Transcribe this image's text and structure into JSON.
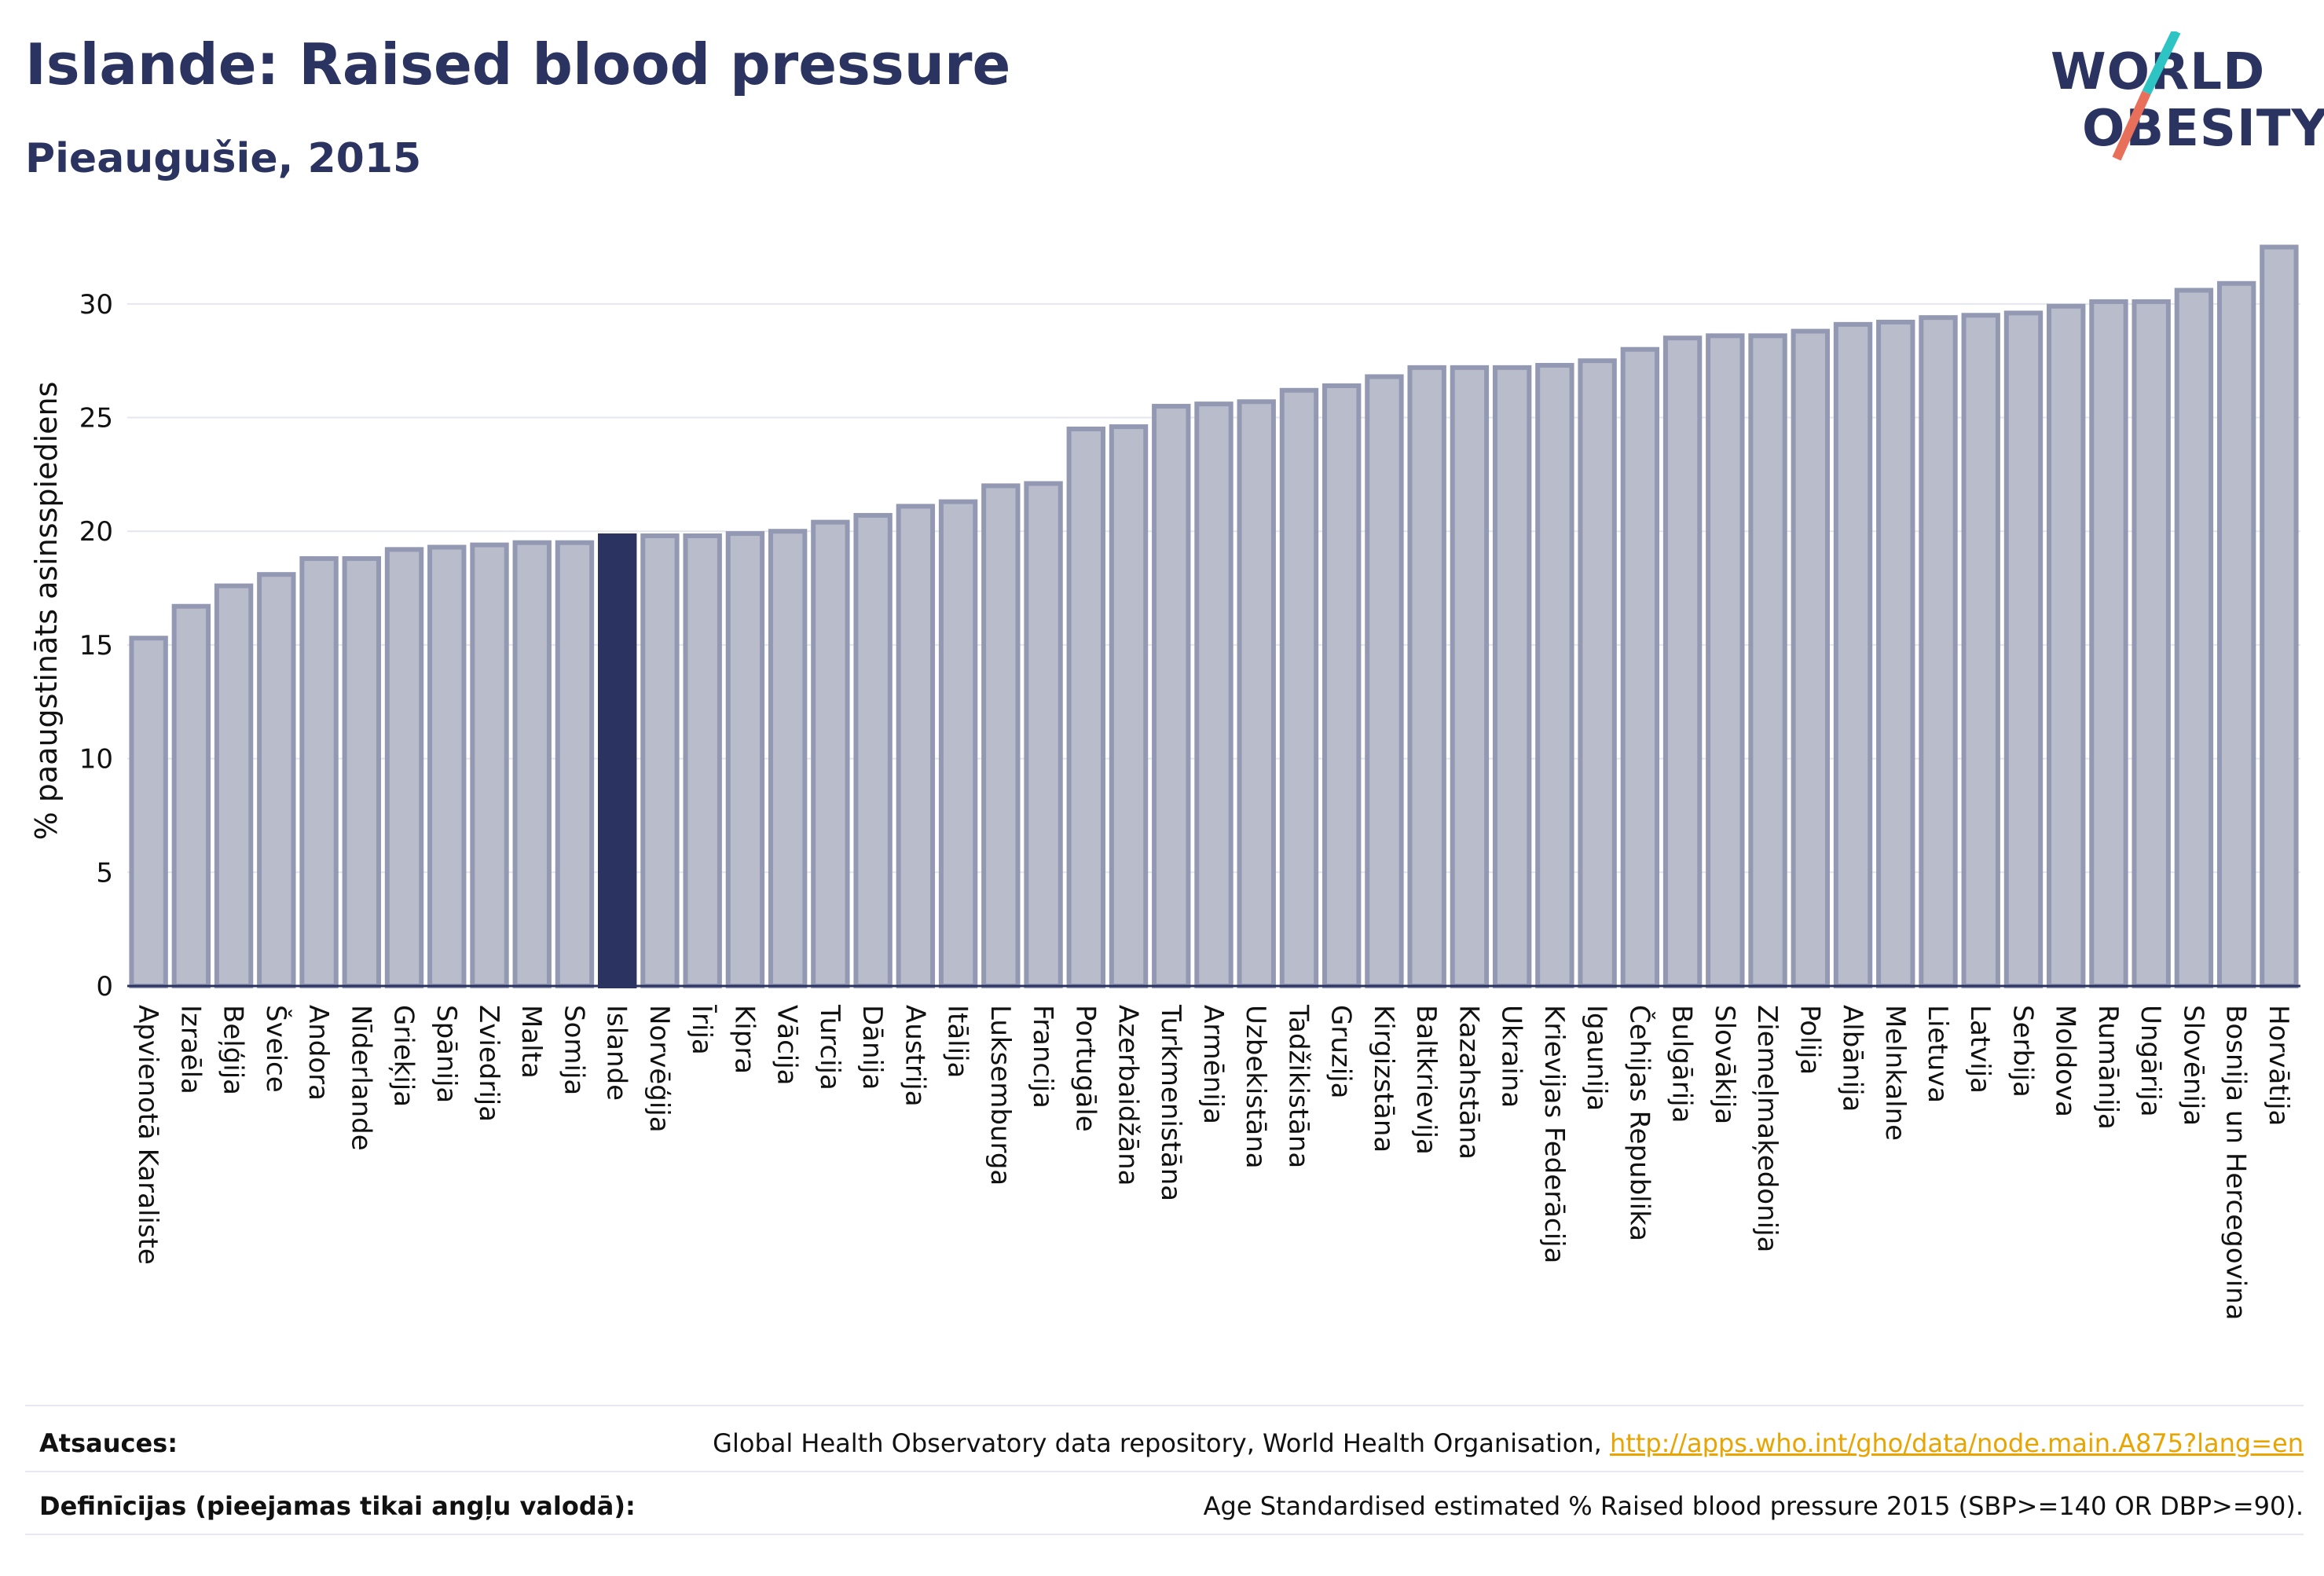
{
  "header": {
    "title": "Islande: Raised blood pressure",
    "subtitle": "Pieaugušie, 2015"
  },
  "logo": {
    "line1": "WORLD",
    "line2": "OBESITY",
    "colors": {
      "text": "#2b3460",
      "slash_teal": "#2ec4c4",
      "slash_red": "#e8705a"
    }
  },
  "chart_data": {
    "type": "bar",
    "ylabel": "% paaugstināts asinsspiediens",
    "ylim": [
      0,
      33
    ],
    "yticks": [
      0,
      5,
      10,
      15,
      20,
      25,
      30
    ],
    "grid": true,
    "highlight": "Islande",
    "colors": {
      "bar": "#b9bccb",
      "bar_border": "#9499b3",
      "highlight": "#2b3460"
    },
    "categories": [
      "Apvienotā Karaliste",
      "Izraēla",
      "Beļģija",
      "Šveice",
      "Andora",
      "Nīderlande",
      "Grieķija",
      "Spānija",
      "Zviedrija",
      "Malta",
      "Somija",
      "Islande",
      "Norvēģija",
      "Īrija",
      "Kipra",
      "Vācija",
      "Turcija",
      "Dānija",
      "Austrija",
      "Itālija",
      "Luksemburga",
      "Francija",
      "Portugāle",
      "Azerbaidžāna",
      "Turkmenistāna",
      "Armēnija",
      "Uzbekistāna",
      "Tadžikistāna",
      "Gruzija",
      "Kirgizstāna",
      "Baltkrievija",
      "Kazahstāna",
      "Ukraina",
      "Krievijas Federācija",
      "Igaunija",
      "Čehijas Republika",
      "Bulgārija",
      "Slovākija",
      "Ziemeļmaķedonija",
      "Polija",
      "Albānija",
      "Melnkalne",
      "Lietuva",
      "Latvija",
      "Serbija",
      "Moldova",
      "Rumānija",
      "Ungārija",
      "Slovēnija",
      "Bosnija un Hercegovina",
      "Horvātija"
    ],
    "values": [
      15.3,
      16.7,
      17.6,
      18.1,
      18.8,
      18.8,
      19.2,
      19.3,
      19.4,
      19.5,
      19.5,
      19.8,
      19.8,
      19.8,
      19.9,
      20.0,
      20.4,
      20.7,
      21.1,
      21.3,
      22.0,
      22.1,
      24.5,
      24.6,
      25.5,
      25.6,
      25.7,
      26.2,
      26.4,
      26.8,
      27.2,
      27.2,
      27.2,
      27.3,
      27.5,
      28.0,
      28.5,
      28.6,
      28.6,
      28.8,
      29.1,
      29.2,
      29.4,
      29.5,
      29.6,
      29.9,
      30.1,
      30.1,
      30.6,
      30.9,
      32.5
    ]
  },
  "footer": {
    "sources_label": "Atsauces:",
    "sources_text": "Global Health Observatory data repository, World Health Organisation, ",
    "sources_link": "http://apps.who.int/gho/data/node.main.A875?lang=en",
    "definitions_label": "Definīcijas (pieejamas tikai angļu valodā):",
    "definitions_text": "Age Standardised estimated % Raised blood pressure 2015 (SBP>=140 OR DBP>=90)."
  }
}
